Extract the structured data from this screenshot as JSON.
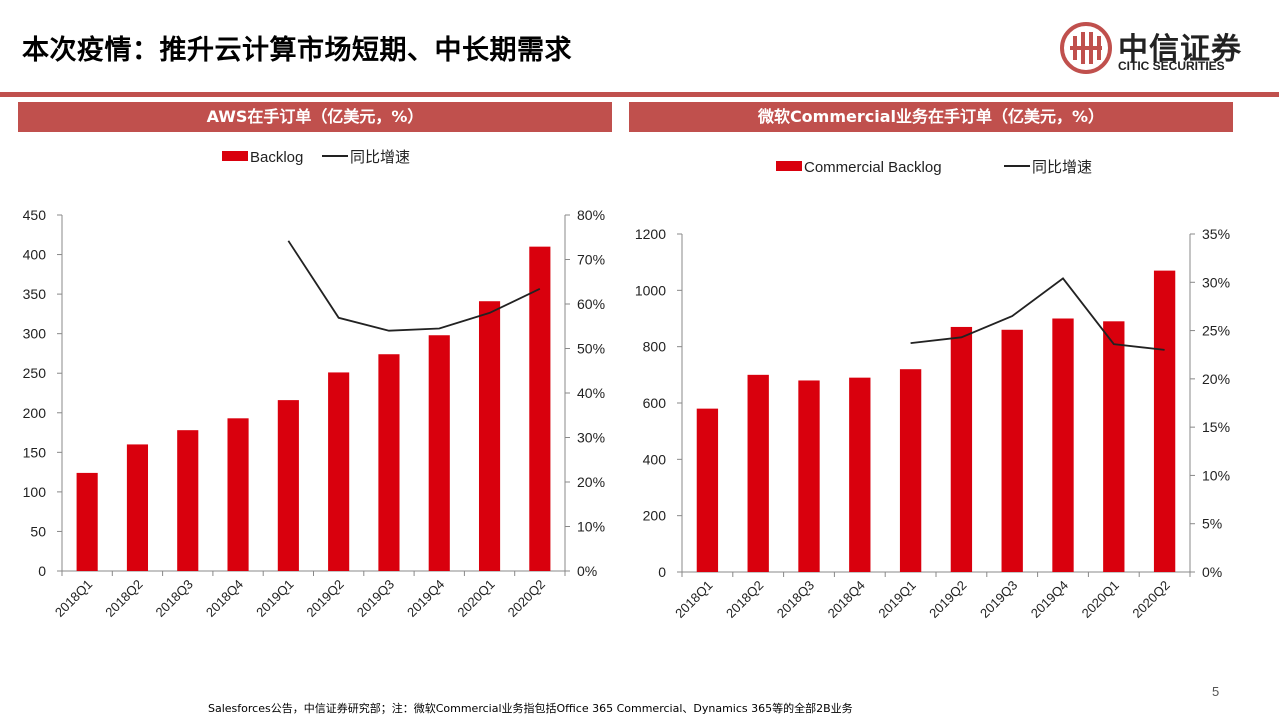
{
  "title": "本次疫情：推升云计算市场短期、中长期需求",
  "logo": {
    "cn": "中信证券",
    "en": "CITIC SECURITIES"
  },
  "colors": {
    "accent": "#c0504d",
    "bar": "#d9000d",
    "line": "#222222"
  },
  "page_number": "5",
  "footer": "Salesforces公告，中信证券研究部；注：微软Commercial业务指包括Office 365 Commercial、Dynamics 365等的全部2B业务",
  "left_panel": {
    "header": "AWS在手订单（亿美元，%）"
  },
  "right_panel": {
    "header": "微软Commercial业务在手订单（亿美元，%）"
  },
  "chart_data": [
    {
      "type": "bar",
      "title": "AWS在手订单（亿美元，%）",
      "categories": [
        "2018Q1",
        "2018Q2",
        "2018Q3",
        "2018Q4",
        "2019Q1",
        "2019Q2",
        "2019Q3",
        "2019Q4",
        "2020Q1",
        "2020Q2"
      ],
      "series": [
        {
          "name": "Backlog",
          "type": "bar",
          "axis": "left",
          "values": [
            124,
            160,
            178,
            193,
            216,
            251,
            274,
            298,
            341,
            410
          ]
        },
        {
          "name": "同比增速",
          "type": "line",
          "axis": "right",
          "values": [
            null,
            null,
            null,
            null,
            74.2,
            56.9,
            54.0,
            54.5,
            58.0,
            63.4
          ]
        }
      ],
      "ylim_left": [
        0,
        450
      ],
      "yticks_left": [
        0,
        50,
        100,
        150,
        200,
        250,
        300,
        350,
        400,
        450
      ],
      "ylim_right": [
        0,
        80
      ],
      "yticks_right": [
        0,
        10,
        20,
        30,
        40,
        50,
        60,
        70,
        80
      ],
      "right_unit": "%",
      "legend_position": "top"
    },
    {
      "type": "bar",
      "title": "微软Commercial业务在手订单（亿美元，%）",
      "categories": [
        "2018Q1",
        "2018Q2",
        "2018Q3",
        "2018Q4",
        "2019Q1",
        "2019Q2",
        "2019Q3",
        "2019Q4",
        "2020Q1",
        "2020Q2"
      ],
      "series": [
        {
          "name": "Commercial Backlog",
          "type": "bar",
          "axis": "left",
          "values": [
            580,
            700,
            680,
            690,
            720,
            870,
            860,
            900,
            890,
            1070
          ]
        },
        {
          "name": "同比增速",
          "type": "line",
          "axis": "right",
          "values": [
            null,
            null,
            null,
            null,
            23.7,
            24.3,
            26.5,
            30.4,
            23.6,
            23.0
          ]
        }
      ],
      "ylim_left": [
        0,
        1200
      ],
      "yticks_left": [
        0,
        200,
        400,
        600,
        800,
        1000,
        1200
      ],
      "ylim_right": [
        0,
        35
      ],
      "yticks_right": [
        0,
        5,
        10,
        15,
        20,
        25,
        30,
        35
      ],
      "right_unit": "%",
      "legend_position": "top"
    }
  ]
}
